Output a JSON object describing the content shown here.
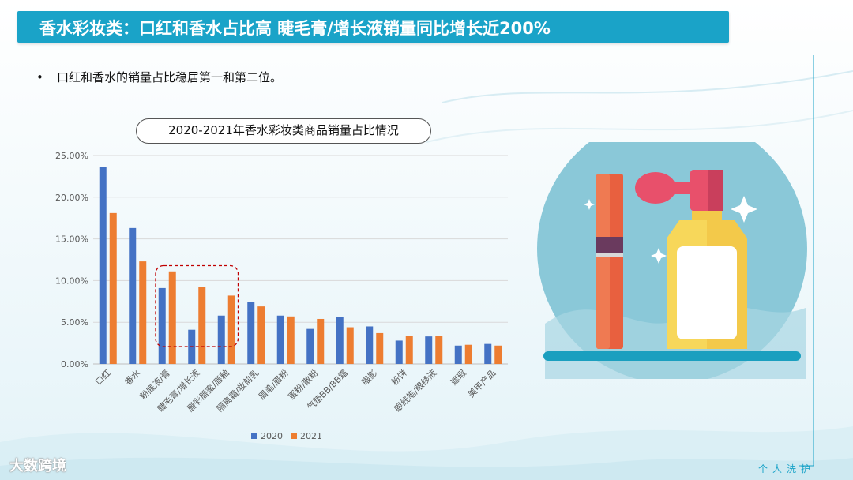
{
  "title": "香水彩妆类：口红和香水占比高 睫毛膏/增长液销量同比增长近200%",
  "bullet": "口红和香水的销量占比稳居第一和第二位。",
  "chart_title": "2020-2021年香水彩妆类商品销量占比情况",
  "footer_right": "个人洗护",
  "footer_left": "大数跨境",
  "colors": {
    "accent": "#1aa3c8",
    "series2020": "#4472c4",
    "series2021": "#ed7d31",
    "highlight": "#c00000"
  },
  "chart_data": {
    "type": "bar",
    "categories": [
      "口红",
      "香水",
      "粉底液/膏",
      "睫毛膏/增长液",
      "唇彩唇蜜/唇釉",
      "隔离霜/妆前乳",
      "眉笔/眉粉",
      "蜜粉/散粉",
      "气垫BB/BB霜",
      "眼影",
      "粉饼",
      "眼线笔/眼线液",
      "遮瑕",
      "美甲产品"
    ],
    "series": [
      {
        "name": "2020",
        "values": [
          23.6,
          16.3,
          9.1,
          4.1,
          5.8,
          7.4,
          5.8,
          4.2,
          5.6,
          4.5,
          2.8,
          3.3,
          2.2,
          2.4
        ]
      },
      {
        "name": "2021",
        "values": [
          18.1,
          12.3,
          11.1,
          9.2,
          8.2,
          6.9,
          5.7,
          5.4,
          4.4,
          3.7,
          3.4,
          3.4,
          2.3,
          2.2
        ]
      }
    ],
    "ylim": [
      0,
      25
    ],
    "yticks": [
      0,
      5,
      10,
      15,
      20,
      25
    ],
    "ytick_labels": [
      "0.00%",
      "5.00%",
      "10.00%",
      "15.00%",
      "20.00%",
      "25.00%"
    ],
    "grid": true,
    "legend_position": "bottom",
    "highlight_categories": [
      "粉底液/膏",
      "睫毛膏/增长液",
      "唇彩唇蜜/唇釉"
    ]
  }
}
